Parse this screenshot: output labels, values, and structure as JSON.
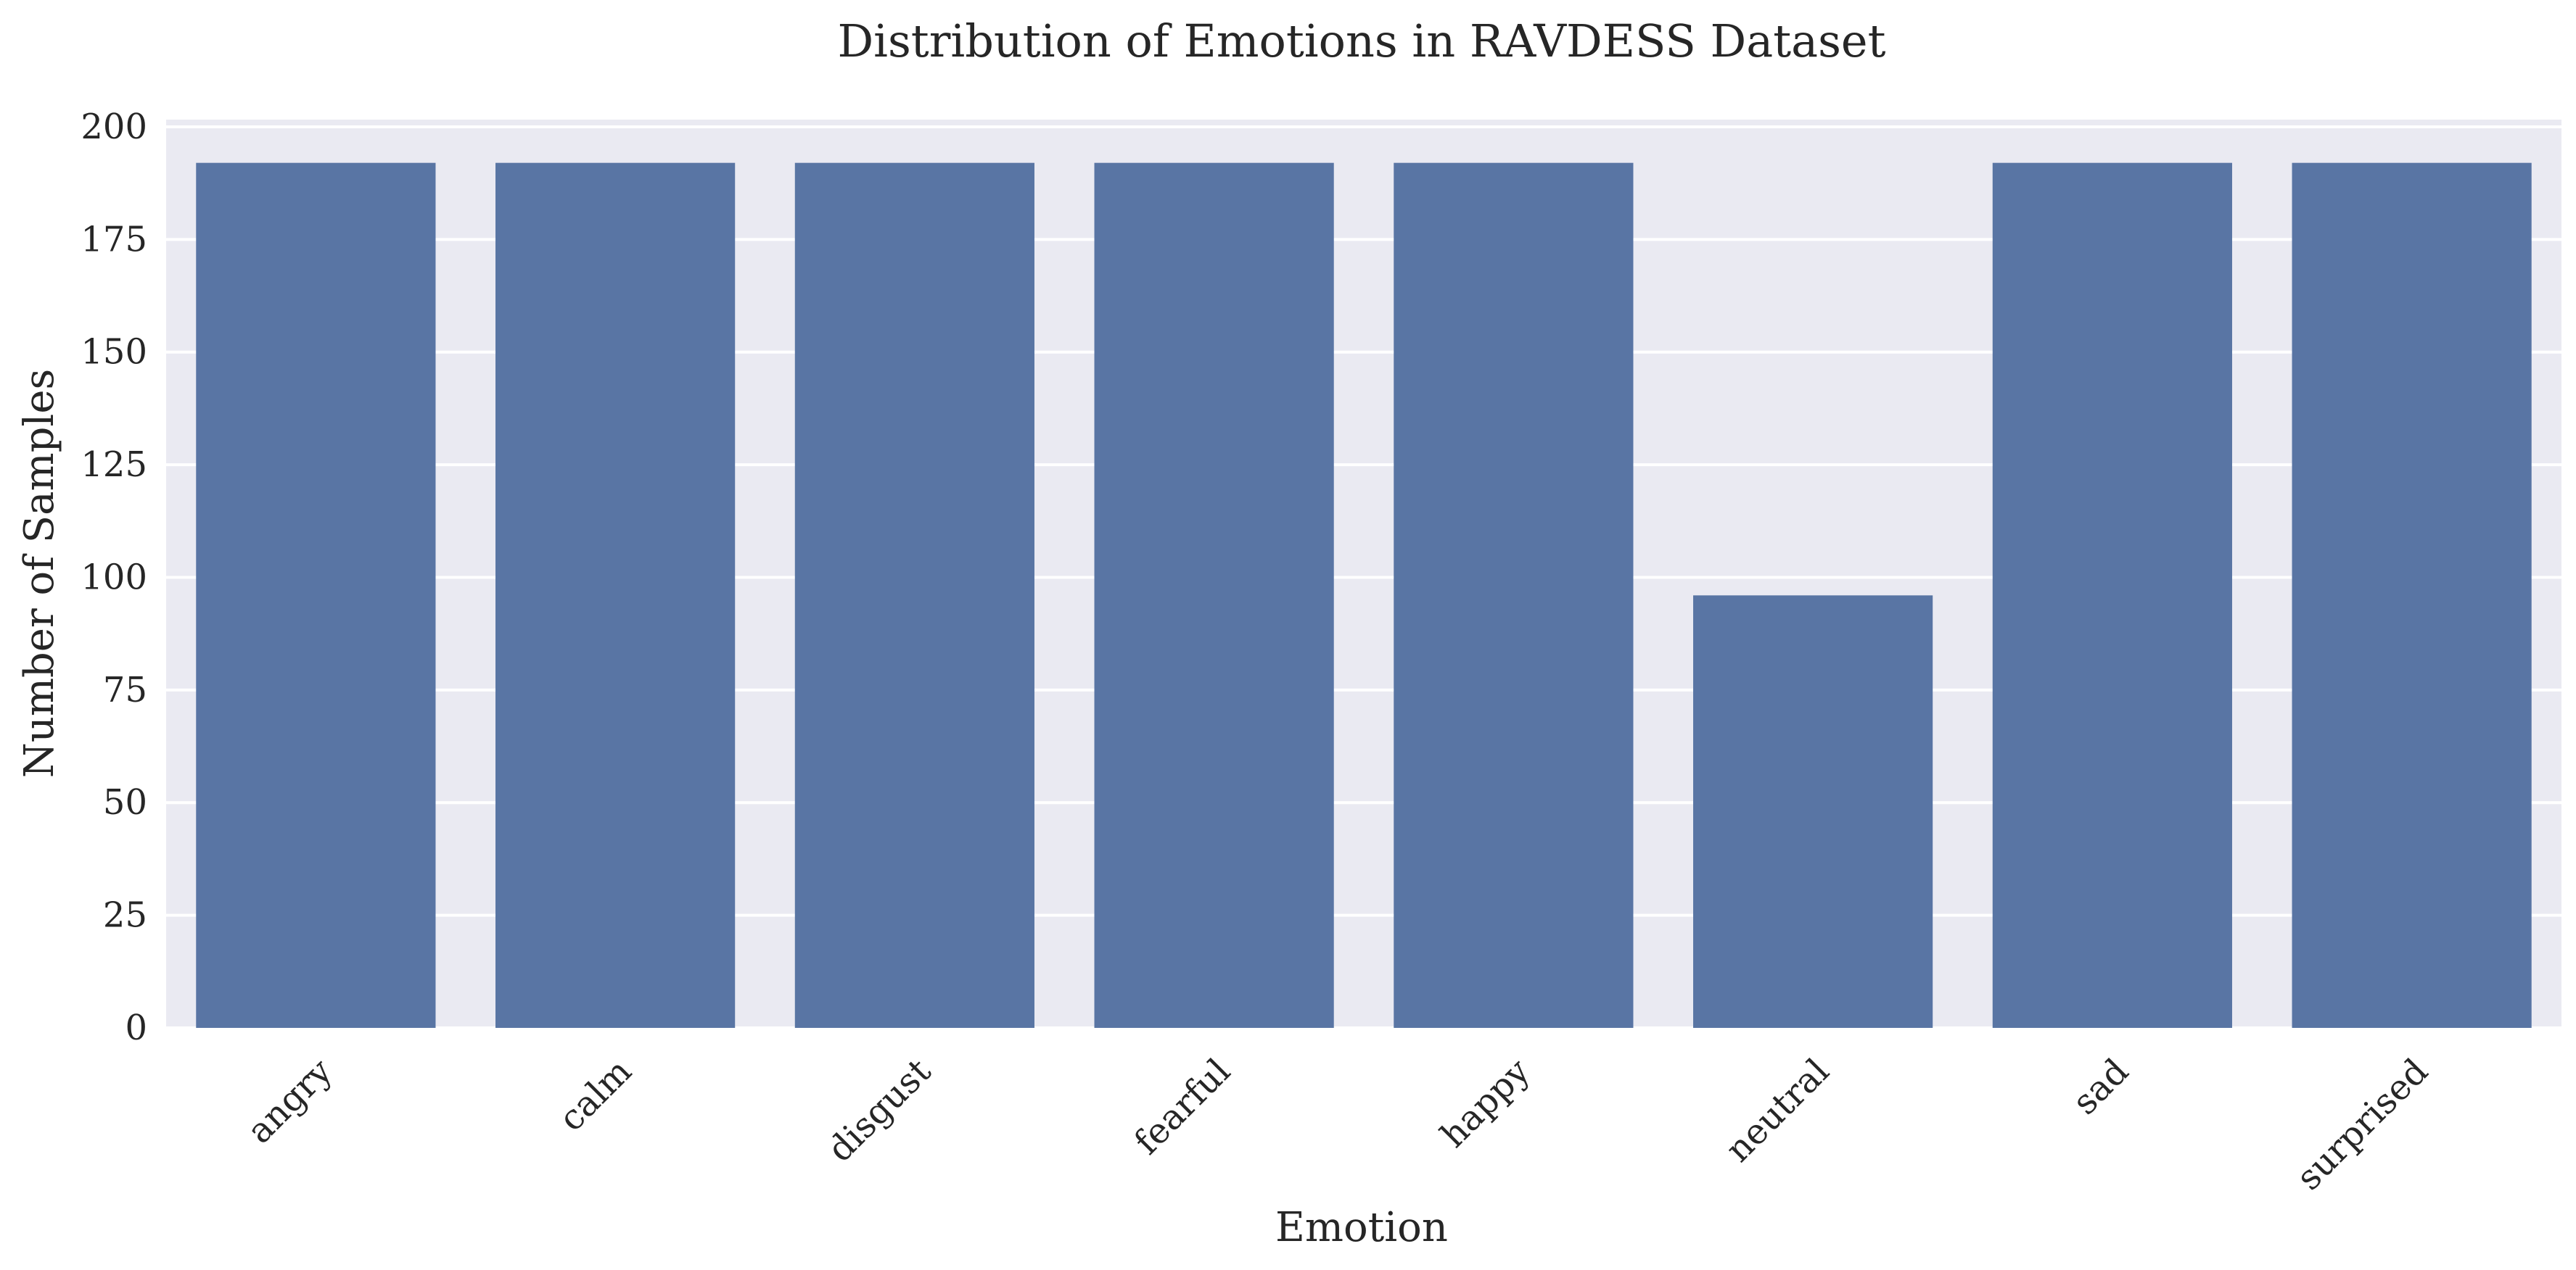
{
  "colors": {
    "plot_background": "#eaeaf2",
    "grid": "#ffffff",
    "bar": "#5975a4",
    "text": "#262626"
  },
  "chart_data": {
    "type": "bar",
    "title": "Distribution of Emotions in RAVDESS Dataset",
    "xlabel": "Emotion",
    "ylabel": "Number of Samples",
    "categories": [
      "angry",
      "calm",
      "disgust",
      "fearful",
      "happy",
      "neutral",
      "sad",
      "surprised"
    ],
    "values": [
      192,
      192,
      192,
      192,
      192,
      96,
      192,
      192
    ],
    "ylim": [
      0,
      201.6
    ],
    "yticks": [
      "0",
      "25",
      "50",
      "75",
      "100",
      "125",
      "150",
      "175",
      "200"
    ],
    "grid": true,
    "legend": "none"
  }
}
